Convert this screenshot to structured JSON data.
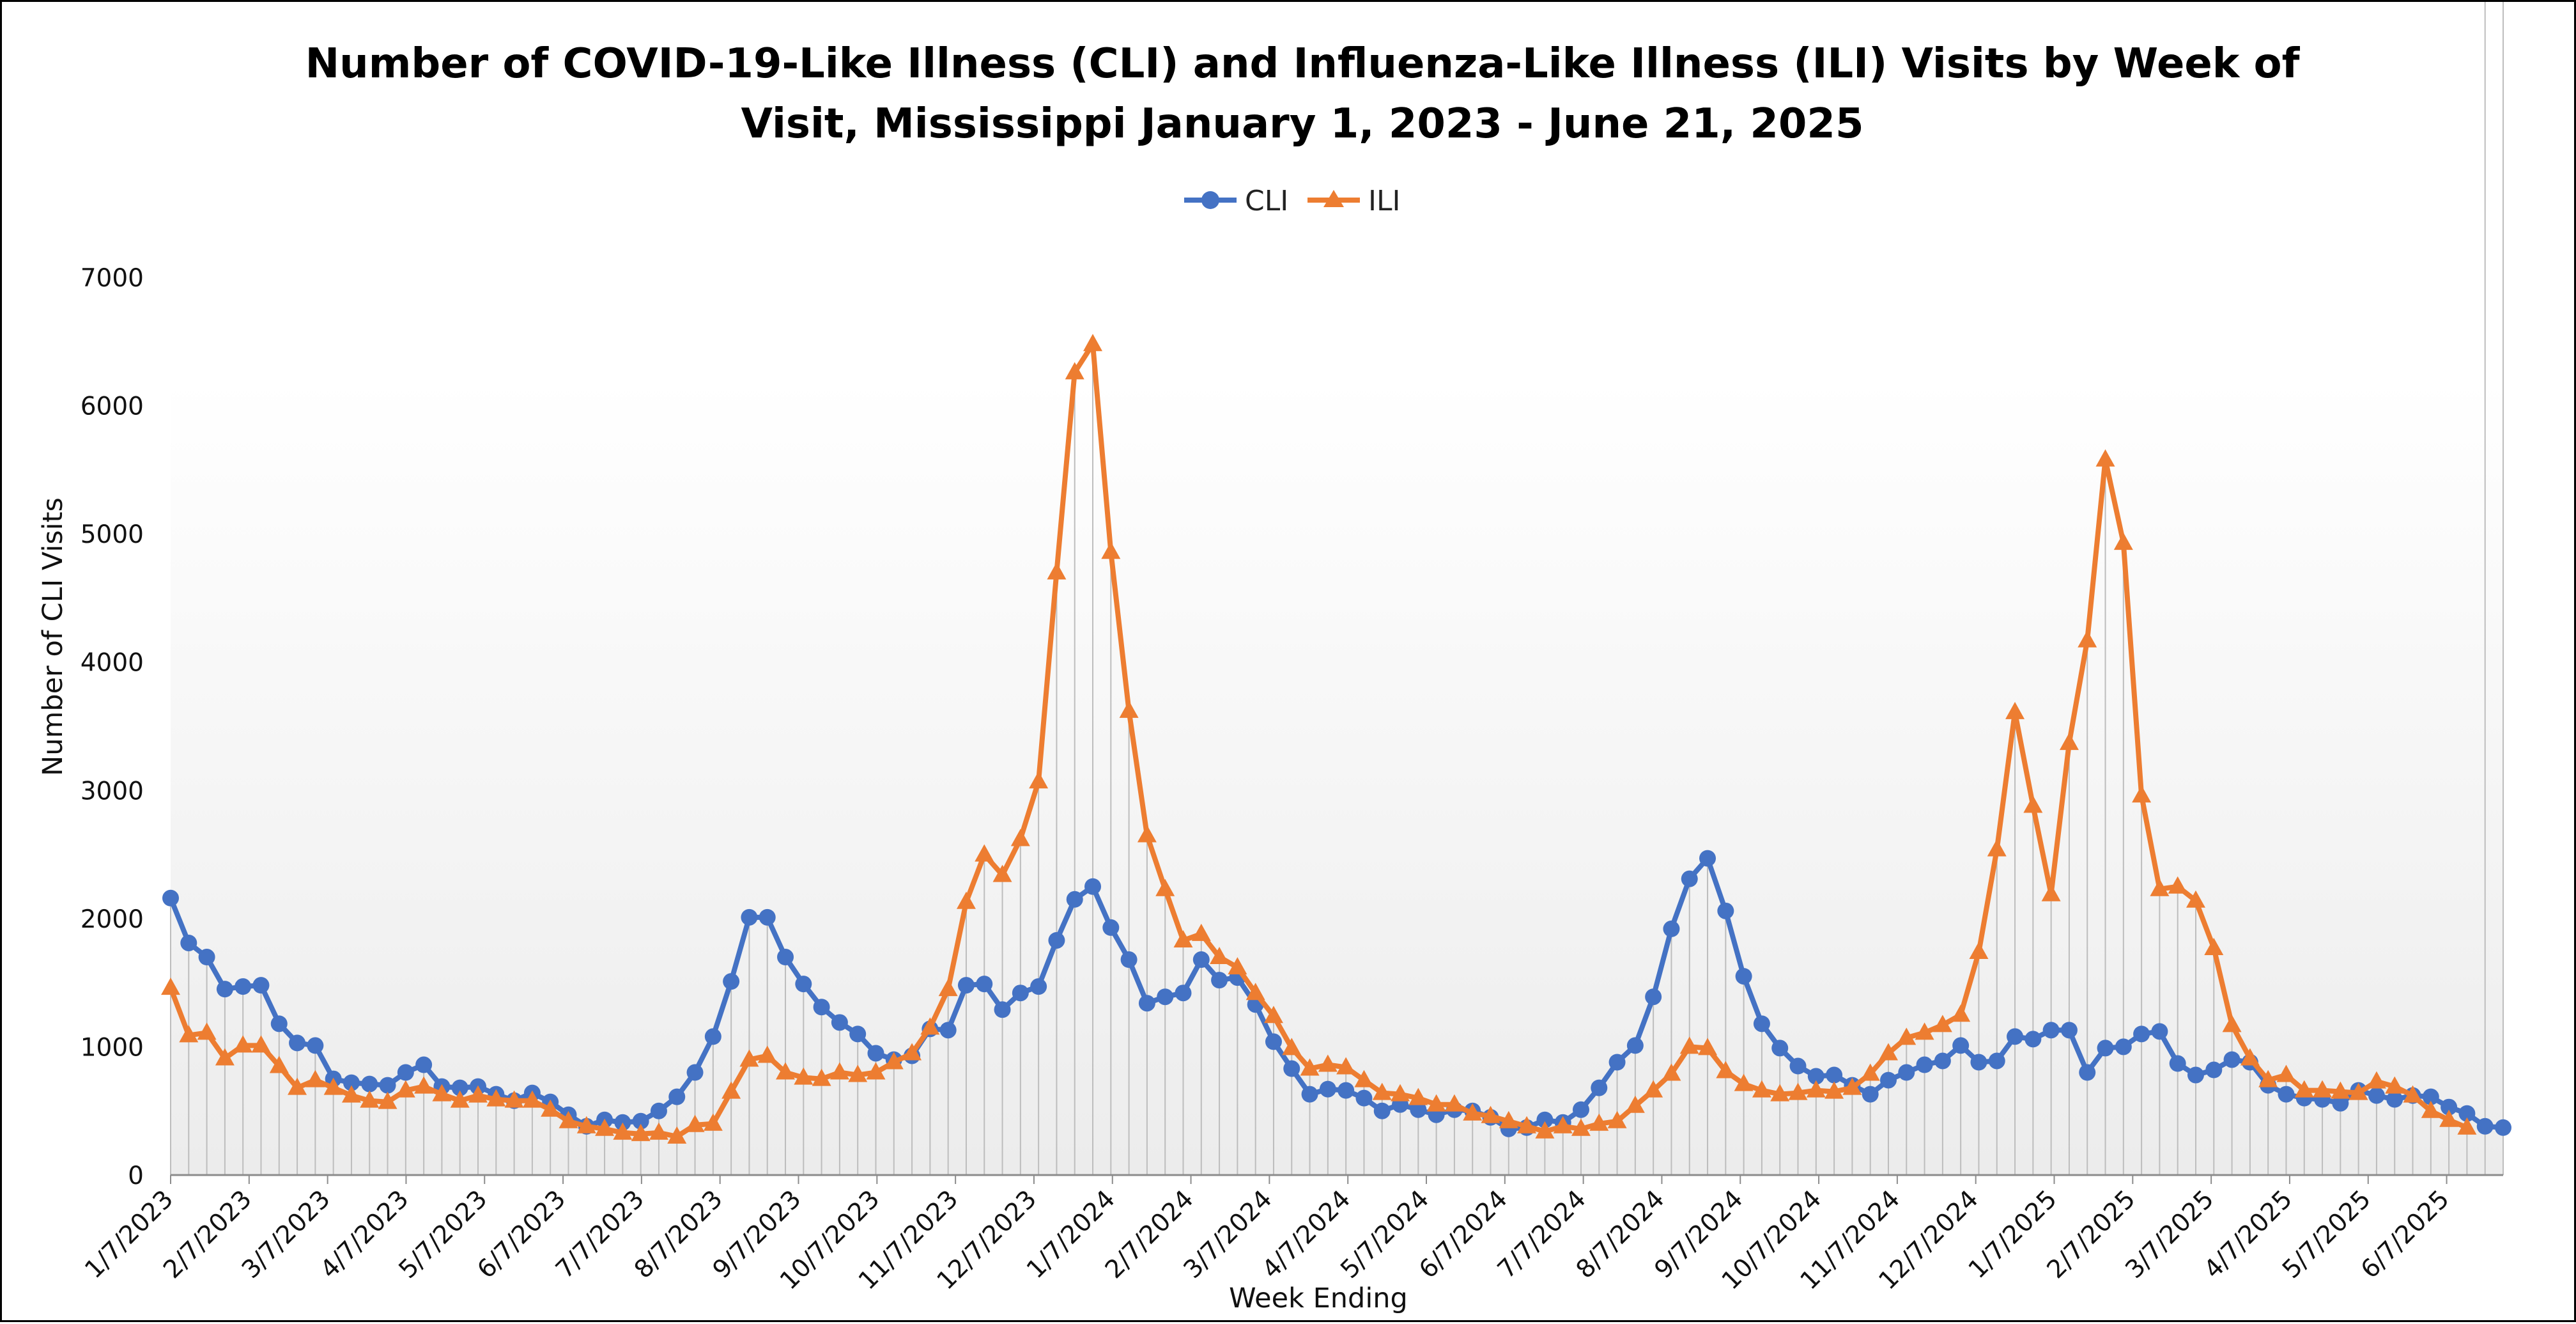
{
  "chart_data": {
    "type": "line",
    "title": "Number of COVID-19-Like Illness (CLI) and Influenza-Like Illness (ILI) Visits by Week of Visit, Mississippi January 1, 2023 - June 21, 2025",
    "title_lines": [
      "Number of COVID-19-Like Illness (CLI) and Influenza-Like Illness (ILI) Visits by Week of",
      "Visit, Mississippi January 1, 2023 - June 21, 2025"
    ],
    "xlabel": "Week Ending",
    "ylabel": "Number of CLI Visits",
    "ylim": [
      0,
      7000
    ],
    "yticks": [
      "0",
      "1000",
      "2000",
      "3000",
      "4000",
      "5000",
      "6000",
      "7000"
    ],
    "x_tick_labels": [
      "1/7/2023",
      "2/7/2023",
      "3/7/2023",
      "4/7/2023",
      "5/7/2023",
      "6/7/2023",
      "7/7/2023",
      "8/7/2023",
      "9/7/2023",
      "10/7/2023",
      "11/7/2023",
      "12/7/2023",
      "1/7/2024",
      "2/7/2024",
      "3/7/2024",
      "4/7/2024",
      "5/7/2024",
      "6/7/2024",
      "7/7/2024",
      "8/7/2024",
      "9/7/2024",
      "10/7/2024",
      "11/7/2024",
      "12/7/2024",
      "1/7/2025",
      "2/7/2025",
      "3/7/2025",
      "4/7/2025",
      "5/7/2025",
      "6/7/2025"
    ],
    "legend_position": "top-center",
    "grid": false,
    "series": [
      {
        "name": "CLI",
        "color": "#4472C4",
        "marker": "circle",
        "values": [
          2160,
          1810,
          1700,
          1450,
          1470,
          1480,
          1180,
          1030,
          1010,
          750,
          720,
          710,
          700,
          800,
          860,
          690,
          680,
          690,
          630,
          580,
          640,
          570,
          470,
          380,
          430,
          410,
          420,
          500,
          610,
          800,
          1080,
          1510,
          2010,
          2010,
          1700,
          1490,
          1310,
          1190,
          1100,
          950,
          900,
          930,
          1140,
          1130,
          1480,
          1490,
          1290,
          1420,
          1470,
          1830,
          2150,
          2250,
          1930,
          1680,
          1340,
          1390,
          1420,
          1680,
          1520,
          1540,
          1330,
          1040,
          830,
          630,
          670,
          660,
          600,
          500,
          550,
          510,
          470,
          510,
          500,
          450,
          360,
          370,
          430,
          410,
          510,
          680,
          880,
          1010,
          1390,
          1920,
          2310,
          2470,
          2060,
          1550,
          1180,
          990,
          850,
          770,
          780,
          700,
          630,
          740,
          800,
          860,
          890,
          1010,
          880,
          890,
          1080,
          1060,
          1130,
          1130,
          800,
          990,
          1000,
          1100,
          1120,
          870,
          780,
          820,
          900,
          880,
          700,
          630,
          600,
          590,
          560,
          660,
          620,
          590,
          620,
          610,
          530,
          480,
          380,
          370
        ]
      },
      {
        "name": "ILI",
        "color": "#ED7D31",
        "marker": "triangle",
        "values": [
          1460,
          1090,
          1110,
          910,
          1010,
          1010,
          850,
          680,
          740,
          680,
          620,
          580,
          570,
          660,
          690,
          630,
          580,
          620,
          590,
          580,
          580,
          510,
          420,
          380,
          360,
          330,
          320,
          330,
          300,
          390,
          400,
          650,
          900,
          930,
          800,
          760,
          750,
          800,
          780,
          800,
          880,
          950,
          1150,
          1450,
          2130,
          2500,
          2340,
          2620,
          3070,
          4700,
          6260,
          6480,
          4860,
          3620,
          2650,
          2230,
          1830,
          1880,
          1700,
          1620,
          1420,
          1240,
          990,
          830,
          860,
          840,
          740,
          640,
          630,
          600,
          550,
          550,
          480,
          460,
          420,
          380,
          340,
          380,
          360,
          400,
          420,
          540,
          660,
          790,
          1000,
          990,
          810,
          710,
          660,
          630,
          640,
          660,
          650,
          680,
          790,
          950,
          1070,
          1110,
          1170,
          1250,
          1740,
          2540,
          3610,
          2880,
          2190,
          3370,
          4170,
          5580,
          4930,
          2960,
          2230,
          2250,
          2140,
          1770,
          1170,
          910,
          740,
          780,
          660,
          660,
          650,
          640,
          730,
          690,
          620,
          500,
          430,
          370
        ]
      }
    ]
  }
}
